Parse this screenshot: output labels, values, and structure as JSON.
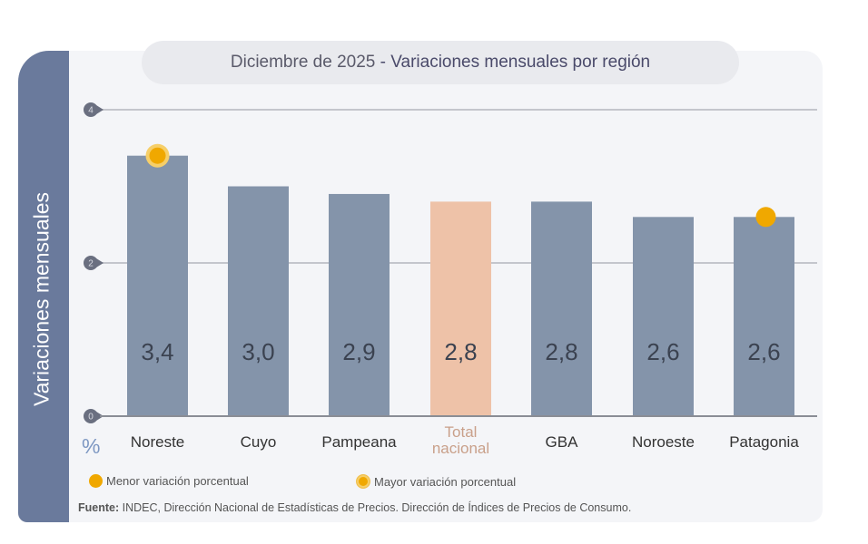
{
  "title_date": "Diciembre de 2025",
  "title_sep": "-",
  "title_main": "Variaciones mensuales por región",
  "colors": {
    "bar": "#8494aa",
    "highlight": "#eec2a8",
    "marker": "#f0a800",
    "band": "#6a7a9c"
  },
  "chart_data": {
    "type": "bar",
    "title": "Diciembre de 2025 - Variaciones mensuales por región",
    "ylabel": "Variaciones mensuales",
    "yunit": "%",
    "ylim": [
      0,
      4
    ],
    "yticks": [
      0,
      2,
      4
    ],
    "grid": true,
    "categories": [
      "Noreste",
      "Cuyo",
      "Pampeana",
      "Total nacional",
      "GBA",
      "Noroeste",
      "Patagonia"
    ],
    "values": [
      3.4,
      3.0,
      2.9,
      2.8,
      2.8,
      2.6,
      2.6
    ],
    "data_labels": [
      "3,4",
      "3,0",
      "2,9",
      "2,8",
      "2,8",
      "2,6",
      "2,6"
    ],
    "highlighted_category": "Total nacional",
    "markers": {
      "Noreste": "Mayor variación porcentual",
      "Patagonia": "Menor variación porcentual"
    },
    "legend": [
      "Menor variación porcentual",
      "Mayor variación porcentual"
    ],
    "legend_placement": "bottom-left"
  },
  "source_label": "Fuente:",
  "source_text": "INDEC, Dirección Nacional de Estadísticas de Precios. Dirección de Índices de Precios de Consumo."
}
